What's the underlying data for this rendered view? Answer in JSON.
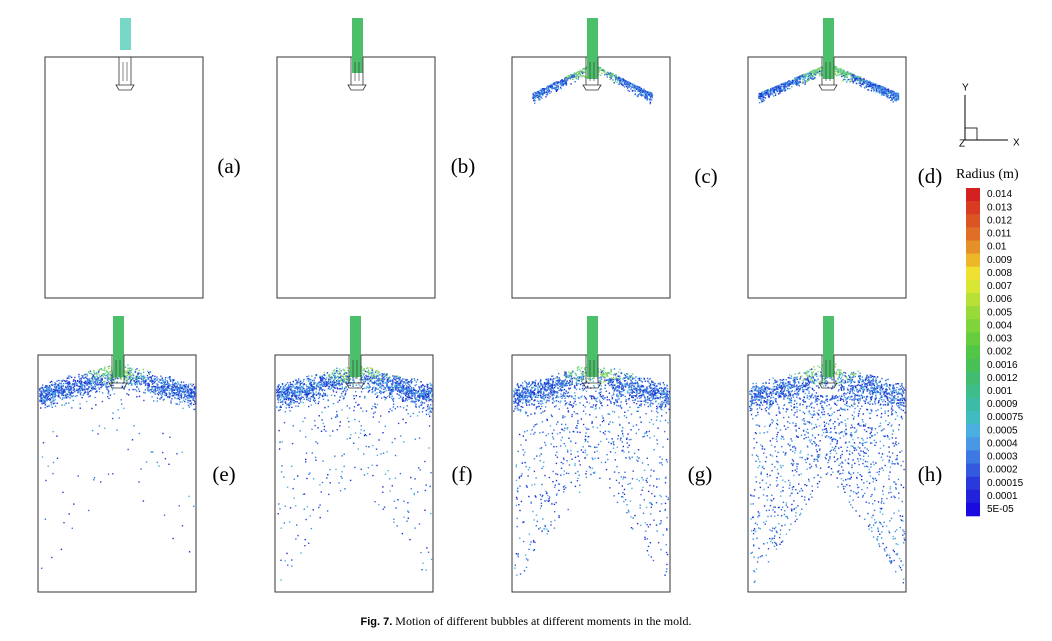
{
  "panel_labels": [
    "(a)",
    "(b)",
    "(c)",
    "(d)",
    "(e)",
    "(f)",
    "(g)",
    "(h)"
  ],
  "legend": {
    "title": "Radius (m)",
    "levels": [
      "0.014",
      "0.013",
      "0.012",
      "0.011",
      "0.01",
      "0.009",
      "0.008",
      "0.007",
      "0.006",
      "0.005",
      "0.004",
      "0.003",
      "0.002",
      "0.0016",
      "0.0012",
      "0.001",
      "0.0009",
      "0.00075",
      "0.0005",
      "0.0004",
      "0.0003",
      "0.0002",
      "0.00015",
      "0.0001",
      "5E-05"
    ]
  },
  "axes": {
    "y": "Y",
    "z": "Z",
    "x": "X"
  },
  "caption": {
    "label": "Fig. 7.",
    "text": "Motion of different bubbles at different moments in the mold."
  }
}
